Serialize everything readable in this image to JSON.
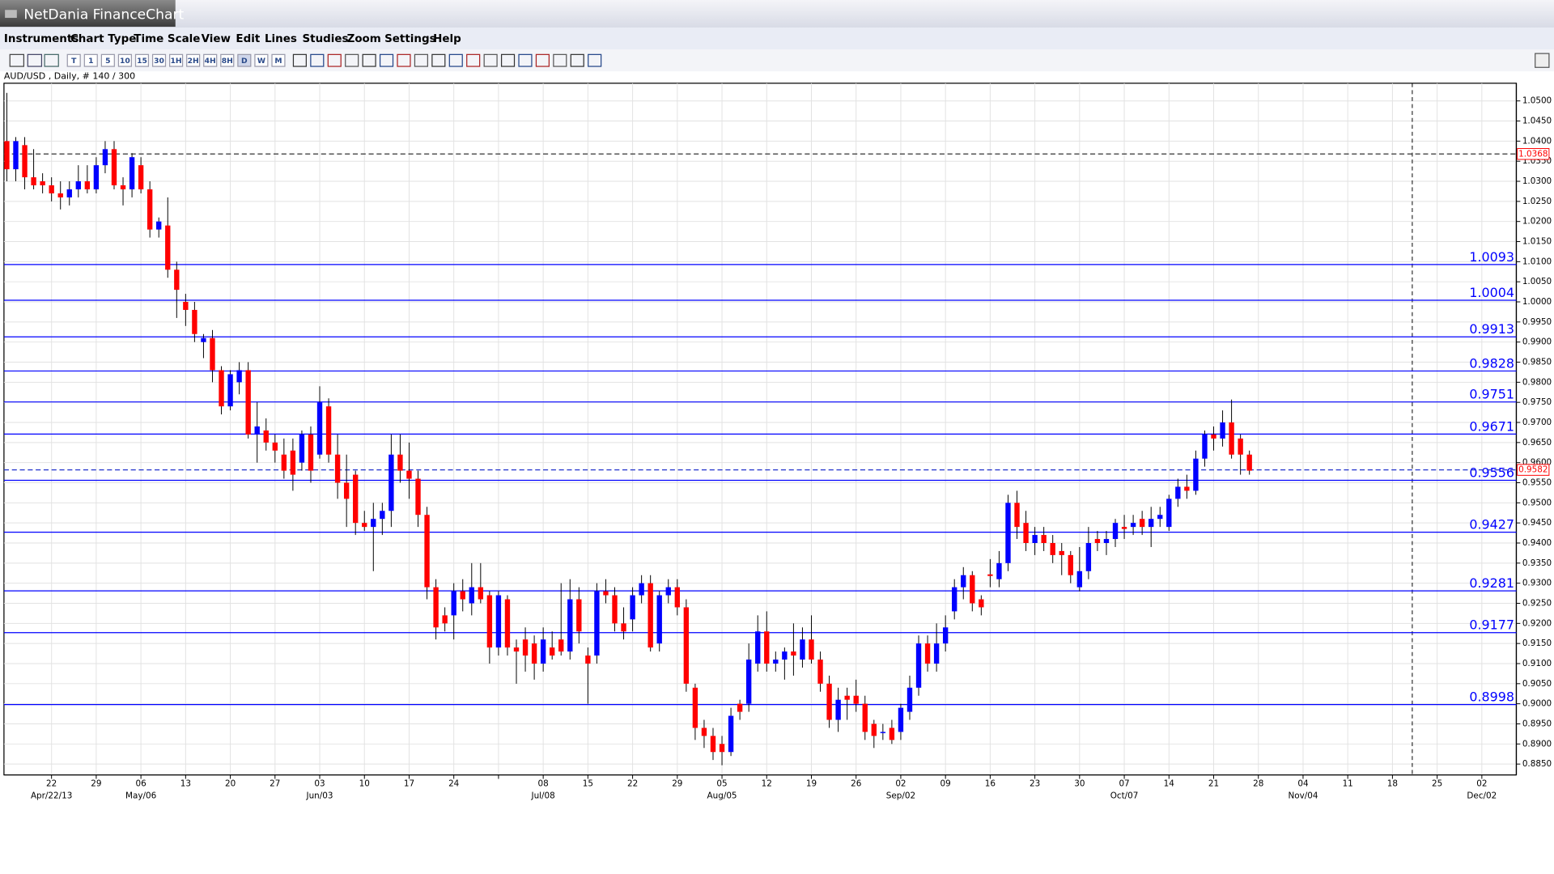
{
  "app": {
    "title": "NetDania FinanceChart",
    "menu": [
      "Instruments",
      "Chart Type",
      "Time Scale",
      "View",
      "Edit",
      "Lines",
      "Studies",
      "Zoom",
      "Settings",
      "Help"
    ],
    "toolbar": [
      "T",
      "1",
      "5",
      "10",
      "15",
      "30",
      "1H",
      "2H",
      "4H",
      "8H",
      "D",
      "W",
      "M"
    ]
  },
  "chart_data": {
    "type": "candlestick",
    "title": "AUD/USD , Daily, # 140 / 300",
    "up_color": "#0000ff",
    "down_color": "#ff0000",
    "level_color": "#0000ff",
    "grid": true,
    "ylim": [
      0.8823,
      1.0544
    ],
    "yticks": [
      {
        "value": 0.885,
        "label": "0.8850"
      },
      {
        "value": 0.89,
        "label": "0.8900"
      },
      {
        "value": 0.895,
        "label": "0.8950"
      },
      {
        "value": 0.9,
        "label": "0.9000"
      },
      {
        "value": 0.905,
        "label": "0.9050"
      },
      {
        "value": 0.91,
        "label": "0.9100"
      },
      {
        "value": 0.915,
        "label": "0.9150"
      },
      {
        "value": 0.92,
        "label": "0.9200"
      },
      {
        "value": 0.925,
        "label": "0.9250"
      },
      {
        "value": 0.93,
        "label": "0.9300"
      },
      {
        "value": 0.935,
        "label": "0.9350"
      },
      {
        "value": 0.94,
        "label": "0.9400"
      },
      {
        "value": 0.945,
        "label": "0.9450"
      },
      {
        "value": 0.95,
        "label": "0.9500"
      },
      {
        "value": 0.955,
        "label": "0.9550"
      },
      {
        "value": 0.96,
        "label": "0.9600"
      },
      {
        "value": 0.965,
        "label": "0.9650"
      },
      {
        "value": 0.97,
        "label": "0.9700"
      },
      {
        "value": 0.975,
        "label": "0.9750"
      },
      {
        "value": 0.98,
        "label": "0.9800"
      },
      {
        "value": 0.985,
        "label": "0.9850"
      },
      {
        "value": 0.99,
        "label": "0.9900"
      },
      {
        "value": 0.995,
        "label": "0.9950"
      },
      {
        "value": 1.0,
        "label": "1.0000"
      },
      {
        "value": 1.005,
        "label": "1.0050"
      },
      {
        "value": 1.01,
        "label": "1.0100"
      },
      {
        "value": 1.015,
        "label": "1.0150"
      },
      {
        "value": 1.02,
        "label": "1.0200"
      },
      {
        "value": 1.025,
        "label": "1.0250"
      },
      {
        "value": 1.03,
        "label": "1.0300"
      },
      {
        "value": 1.035,
        "label": "1.0350"
      },
      {
        "value": 1.04,
        "label": "1.0400"
      },
      {
        "value": 1.045,
        "label": "1.0450"
      },
      {
        "value": 1.05,
        "label": "1.0500"
      }
    ],
    "x_labels": [
      "22",
      "29",
      "06",
      "13",
      "20",
      "27",
      "03",
      "10",
      "17",
      "24",
      null,
      "08",
      "15",
      "22",
      "29",
      "05",
      "12",
      "19",
      "26",
      "02",
      "09",
      "16",
      "23",
      "30",
      "07",
      "14",
      "21",
      "28",
      "04",
      "11",
      "18",
      "25",
      "02"
    ],
    "x_sublabels": [
      "Apr/22/13",
      null,
      "May/06",
      null,
      null,
      null,
      "Jun/03",
      null,
      null,
      null,
      null,
      "Jul/08",
      null,
      null,
      null,
      "Aug/05",
      null,
      null,
      null,
      "Sep/02",
      null,
      null,
      null,
      null,
      "Oct/07",
      null,
      null,
      null,
      "Nov/04",
      null,
      null,
      null,
      "Dec/02"
    ],
    "levels": [
      1.0093,
      1.0004,
      0.9913,
      0.9828,
      0.9751,
      0.9671,
      0.9556,
      0.9427,
      0.9281,
      0.9177,
      0.8998
    ],
    "price_markers": [
      1.0368,
      0.9582
    ],
    "candles": [
      [
        1.04,
        1.052,
        1.03,
        1.033
      ],
      [
        1.033,
        1.041,
        1.03,
        1.04
      ],
      [
        1.039,
        1.041,
        1.028,
        1.031
      ],
      [
        1.031,
        1.038,
        1.028,
        1.029
      ],
      [
        1.03,
        1.032,
        1.027,
        1.029
      ],
      [
        1.029,
        1.031,
        1.025,
        1.027
      ],
      [
        1.027,
        1.03,
        1.023,
        1.026
      ],
      [
        1.026,
        1.03,
        1.024,
        1.028
      ],
      [
        1.028,
        1.034,
        1.026,
        1.03
      ],
      [
        1.03,
        1.034,
        1.027,
        1.028
      ],
      [
        1.028,
        1.036,
        1.027,
        1.034
      ],
      [
        1.034,
        1.04,
        1.032,
        1.038
      ],
      [
        1.038,
        1.04,
        1.028,
        1.029
      ],
      [
        1.029,
        1.031,
        1.024,
        1.028
      ],
      [
        1.028,
        1.037,
        1.026,
        1.036
      ],
      [
        1.034,
        1.036,
        1.027,
        1.028
      ],
      [
        1.028,
        1.03,
        1.016,
        1.018
      ],
      [
        1.018,
        1.021,
        1.016,
        1.02
      ],
      [
        1.019,
        1.026,
        1.006,
        1.008
      ],
      [
        1.008,
        1.01,
        0.996,
        1.003
      ],
      [
        1.0,
        1.002,
        0.994,
        0.998
      ],
      [
        0.998,
        1.0,
        0.99,
        0.992
      ],
      [
        0.99,
        0.992,
        0.986,
        0.991
      ],
      [
        0.991,
        0.993,
        0.98,
        0.983
      ],
      [
        0.983,
        0.984,
        0.972,
        0.974
      ],
      [
        0.974,
        0.983,
        0.973,
        0.982
      ],
      [
        0.98,
        0.985,
        0.977,
        0.983
      ],
      [
        0.983,
        0.985,
        0.966,
        0.967
      ],
      [
        0.967,
        0.975,
        0.96,
        0.969
      ],
      [
        0.968,
        0.971,
        0.963,
        0.965
      ],
      [
        0.965,
        0.967,
        0.96,
        0.963
      ],
      [
        0.962,
        0.966,
        0.956,
        0.958
      ],
      [
        0.963,
        0.966,
        0.953,
        0.957
      ],
      [
        0.96,
        0.968,
        0.958,
        0.967
      ],
      [
        0.967,
        0.969,
        0.955,
        0.958
      ],
      [
        0.962,
        0.979,
        0.961,
        0.975
      ],
      [
        0.974,
        0.976,
        0.96,
        0.962
      ],
      [
        0.962,
        0.967,
        0.951,
        0.955
      ],
      [
        0.955,
        0.962,
        0.944,
        0.951
      ],
      [
        0.957,
        0.958,
        0.942,
        0.945
      ],
      [
        0.945,
        0.948,
        0.943,
        0.944
      ],
      [
        0.944,
        0.95,
        0.933,
        0.946
      ],
      [
        0.946,
        0.95,
        0.942,
        0.948
      ],
      [
        0.948,
        0.967,
        0.944,
        0.962
      ],
      [
        0.962,
        0.967,
        0.955,
        0.958
      ],
      [
        0.958,
        0.965,
        0.951,
        0.956
      ],
      [
        0.956,
        0.958,
        0.944,
        0.947
      ],
      [
        0.947,
        0.949,
        0.926,
        0.929
      ],
      [
        0.929,
        0.931,
        0.916,
        0.919
      ],
      [
        0.922,
        0.924,
        0.918,
        0.92
      ],
      [
        0.922,
        0.93,
        0.916,
        0.928
      ],
      [
        0.928,
        0.931,
        0.923,
        0.926
      ],
      [
        0.925,
        0.935,
        0.922,
        0.929
      ],
      [
        0.929,
        0.935,
        0.925,
        0.926
      ],
      [
        0.927,
        0.928,
        0.91,
        0.914
      ],
      [
        0.914,
        0.928,
        0.912,
        0.927
      ],
      [
        0.926,
        0.927,
        0.912,
        0.914
      ],
      [
        0.914,
        0.916,
        0.905,
        0.913
      ],
      [
        0.916,
        0.919,
        0.908,
        0.912
      ],
      [
        0.915,
        0.917,
        0.906,
        0.91
      ],
      [
        0.91,
        0.919,
        0.908,
        0.916
      ],
      [
        0.914,
        0.918,
        0.911,
        0.912
      ],
      [
        0.916,
        0.93,
        0.912,
        0.913
      ],
      [
        0.913,
        0.931,
        0.911,
        0.926
      ],
      [
        0.926,
        0.929,
        0.915,
        0.918
      ],
      [
        0.912,
        0.914,
        0.9,
        0.91
      ],
      [
        0.912,
        0.93,
        0.91,
        0.928
      ],
      [
        0.928,
        0.931,
        0.925,
        0.927
      ],
      [
        0.927,
        0.929,
        0.918,
        0.92
      ],
      [
        0.92,
        0.924,
        0.916,
        0.918
      ],
      [
        0.921,
        0.929,
        0.918,
        0.927
      ],
      [
        0.927,
        0.932,
        0.925,
        0.93
      ],
      [
        0.93,
        0.932,
        0.913,
        0.914
      ],
      [
        0.915,
        0.928,
        0.913,
        0.927
      ],
      [
        0.927,
        0.931,
        0.925,
        0.929
      ],
      [
        0.929,
        0.931,
        0.922,
        0.924
      ],
      [
        0.924,
        0.926,
        0.903,
        0.905
      ],
      [
        0.904,
        0.905,
        0.891,
        0.894
      ],
      [
        0.894,
        0.896,
        0.889,
        0.892
      ],
      [
        0.892,
        0.894,
        0.886,
        0.888
      ],
      [
        0.89,
        0.892,
        0.8847,
        0.888
      ],
      [
        0.888,
        0.899,
        0.887,
        0.897
      ],
      [
        0.9,
        0.901,
        0.896,
        0.898
      ],
      [
        0.9,
        0.915,
        0.898,
        0.911
      ],
      [
        0.91,
        0.922,
        0.908,
        0.918
      ],
      [
        0.918,
        0.923,
        0.908,
        0.91
      ],
      [
        0.91,
        0.913,
        0.908,
        0.911
      ],
      [
        0.911,
        0.914,
        0.906,
        0.913
      ],
      [
        0.913,
        0.92,
        0.907,
        0.912
      ],
      [
        0.911,
        0.919,
        0.909,
        0.916
      ],
      [
        0.916,
        0.922,
        0.91,
        0.911
      ],
      [
        0.911,
        0.913,
        0.903,
        0.905
      ],
      [
        0.905,
        0.907,
        0.894,
        0.896
      ],
      [
        0.896,
        0.904,
        0.893,
        0.901
      ],
      [
        0.902,
        0.904,
        0.896,
        0.901
      ],
      [
        0.902,
        0.906,
        0.898,
        0.9
      ],
      [
        0.9,
        0.902,
        0.891,
        0.893
      ],
      [
        0.895,
        0.896,
        0.889,
        0.892
      ],
      [
        0.893,
        0.895,
        0.891,
        0.893
      ],
      [
        0.894,
        0.896,
        0.89,
        0.891
      ],
      [
        0.893,
        0.9,
        0.891,
        0.899
      ],
      [
        0.898,
        0.907,
        0.896,
        0.904
      ],
      [
        0.904,
        0.917,
        0.902,
        0.915
      ],
      [
        0.915,
        0.917,
        0.908,
        0.91
      ],
      [
        0.91,
        0.92,
        0.908,
        0.915
      ],
      [
        0.915,
        0.922,
        0.913,
        0.919
      ],
      [
        0.923,
        0.931,
        0.921,
        0.929
      ],
      [
        0.929,
        0.934,
        0.926,
        0.932
      ],
      [
        0.932,
        0.933,
        0.923,
        0.925
      ],
      [
        0.926,
        0.927,
        0.922,
        0.924
      ],
      [
        0.9322,
        0.936,
        0.929,
        0.9318
      ],
      [
        0.931,
        0.938,
        0.929,
        0.935
      ],
      [
        0.935,
        0.952,
        0.933,
        0.95
      ],
      [
        0.95,
        0.953,
        0.941,
        0.944
      ],
      [
        0.945,
        0.948,
        0.938,
        0.94
      ],
      [
        0.94,
        0.944,
        0.937,
        0.942
      ],
      [
        0.942,
        0.944,
        0.938,
        0.94
      ],
      [
        0.94,
        0.942,
        0.935,
        0.937
      ],
      [
        0.938,
        0.94,
        0.932,
        0.937
      ],
      [
        0.937,
        0.938,
        0.93,
        0.932
      ],
      [
        0.929,
        0.939,
        0.928,
        0.933
      ],
      [
        0.933,
        0.944,
        0.931,
        0.94
      ],
      [
        0.941,
        0.943,
        0.938,
        0.94
      ],
      [
        0.94,
        0.943,
        0.937,
        0.941
      ],
      [
        0.941,
        0.946,
        0.939,
        0.945
      ],
      [
        0.944,
        0.947,
        0.941,
        0.9435
      ],
      [
        0.944,
        0.947,
        0.942,
        0.945
      ],
      [
        0.946,
        0.948,
        0.942,
        0.944
      ],
      [
        0.944,
        0.949,
        0.939,
        0.946
      ],
      [
        0.946,
        0.949,
        0.944,
        0.947
      ],
      [
        0.944,
        0.952,
        0.943,
        0.951
      ],
      [
        0.951,
        0.956,
        0.949,
        0.954
      ],
      [
        0.954,
        0.957,
        0.951,
        0.953
      ],
      [
        0.953,
        0.963,
        0.952,
        0.961
      ],
      [
        0.961,
        0.968,
        0.959,
        0.967
      ],
      [
        0.967,
        0.969,
        0.963,
        0.966
      ],
      [
        0.966,
        0.973,
        0.964,
        0.97
      ],
      [
        0.97,
        0.9757,
        0.961,
        0.962
      ],
      [
        0.966,
        0.967,
        0.957,
        0.962
      ],
      [
        0.962,
        0.963,
        0.957,
        0.958
      ]
    ]
  }
}
